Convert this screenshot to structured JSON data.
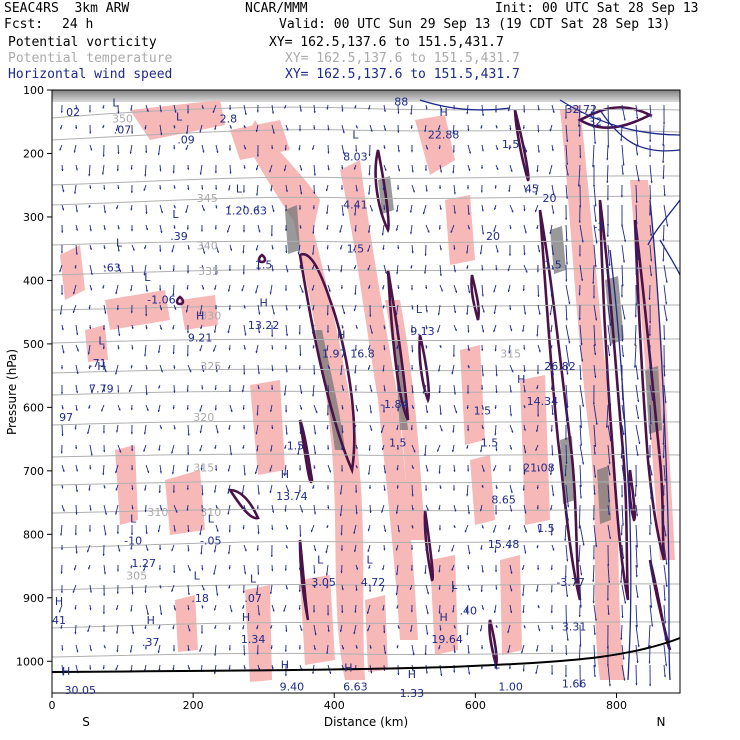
{
  "header": {
    "model": "SEAC4RS  3km ARW",
    "org": "NCAR/MMM",
    "init": "Init: 00 UTC Sat 28 Sep 13",
    "fcst_label": "Fcst:",
    "fcst_value": "24 h",
    "valid": "Valid: 00 UTC Sun 29 Sep 13 (19 CDT Sat 28 Sep 13)",
    "fields": [
      {
        "name": "Potential vorticity",
        "xy": "XY= 162.5,137.6 to 151.5,431.7",
        "color": "#000000"
      },
      {
        "name": "Potential temperature",
        "xy": "XY= 162.5,137.6 to 151.5,431.7",
        "color": "#aaaaaa"
      },
      {
        "name": "Horizontal wind speed",
        "xy": "XY= 162.5,137.6 to 151.5,431.7",
        "color": "#1e2a8a"
      }
    ]
  },
  "chart_data": {
    "type": "cross-section",
    "xlabel": "Distance (km)",
    "ylabel": "Pressure (hPa)",
    "xlim": [
      0,
      890
    ],
    "ylim": [
      1050,
      100
    ],
    "x_ticks": [
      0,
      200,
      400,
      600,
      800
    ],
    "y_ticks": [
      100,
      200,
      300,
      400,
      500,
      600,
      700,
      800,
      900,
      1000
    ],
    "end_labels": {
      "left": "S",
      "right": "N"
    },
    "colors": {
      "pv_shade": "#f7b8b8",
      "pv_contour": "#4a1248",
      "theta": "#aaaaaa",
      "wind": "#1e2a8a",
      "terrain": "#000000"
    },
    "theta_labels": [
      {
        "x": 100,
        "p": 145,
        "text": "350"
      },
      {
        "x": 220,
        "p": 270,
        "text": "345"
      },
      {
        "x": 220,
        "p": 345,
        "text": "340"
      },
      {
        "x": 222,
        "p": 385,
        "text": "335"
      },
      {
        "x": 225,
        "p": 455,
        "text": "330"
      },
      {
        "x": 225,
        "p": 535,
        "text": "325"
      },
      {
        "x": 215,
        "p": 615,
        "text": "320"
      },
      {
        "x": 215,
        "p": 695,
        "text": "315"
      },
      {
        "x": 150,
        "p": 765,
        "text": "310"
      },
      {
        "x": 225,
        "p": 765,
        "text": "310"
      },
      {
        "x": 120,
        "p": 865,
        "text": "305"
      },
      {
        "x": 650,
        "p": 515,
        "text": "315"
      }
    ],
    "annotations": [
      {
        "x": 30,
        "p": 135,
        "text": "02"
      },
      {
        "x": 90,
        "p": 120,
        "text": "L"
      },
      {
        "x": 100,
        "p": 162,
        "text": ".07"
      },
      {
        "x": 180,
        "p": 142,
        "text": "L"
      },
      {
        "x": 190,
        "p": 178,
        "text": ".09"
      },
      {
        "x": 250,
        "p": 145,
        "text": "2.8"
      },
      {
        "x": 265,
        "p": 255,
        "text": "L"
      },
      {
        "x": 275,
        "p": 290,
        "text": "1.20.63"
      },
      {
        "x": 175,
        "p": 295,
        "text": "L"
      },
      {
        "x": 180,
        "p": 330,
        "text": ".39"
      },
      {
        "x": 95,
        "p": 340,
        "text": "L"
      },
      {
        "x": 85,
        "p": 380,
        "text": ".63"
      },
      {
        "x": 135,
        "p": 395,
        "text": "L"
      },
      {
        "x": 155,
        "p": 430,
        "text": "-1.06"
      },
      {
        "x": 300,
        "p": 375,
        "text": "1.5"
      },
      {
        "x": 300,
        "p": 435,
        "text": "H"
      },
      {
        "x": 300,
        "p": 470,
        "text": "13.22"
      },
      {
        "x": 210,
        "p": 455,
        "text": "H"
      },
      {
        "x": 210,
        "p": 490,
        "text": "9.21"
      },
      {
        "x": 70,
        "p": 495,
        "text": "L"
      },
      {
        "x": 65,
        "p": 530,
        "text": ".71"
      },
      {
        "x": 70,
        "p": 535,
        "text": "H"
      },
      {
        "x": 70,
        "p": 570,
        "text": "7.79"
      },
      {
        "x": 20,
        "p": 615,
        "text": "97"
      },
      {
        "x": 430,
        "p": 170,
        "text": "L"
      },
      {
        "x": 430,
        "p": 205,
        "text": "8.03"
      },
      {
        "x": 430,
        "p": 280,
        "text": "4.41"
      },
      {
        "x": 430,
        "p": 350,
        "text": "1.5"
      },
      {
        "x": 410,
        "p": 485,
        "text": "H"
      },
      {
        "x": 400,
        "p": 515,
        "text": "1.97"
      },
      {
        "x": 440,
        "p": 515,
        "text": "16.8"
      },
      {
        "x": 520,
        "p": 445,
        "text": "L"
      },
      {
        "x": 525,
        "p": 480,
        "text": "9.13"
      },
      {
        "x": 485,
        "p": 595,
        "text": "-1.84"
      },
      {
        "x": 490,
        "p": 655,
        "text": "1.5"
      },
      {
        "x": 345,
        "p": 660,
        "text": "1.5"
      },
      {
        "x": 330,
        "p": 705,
        "text": "H"
      },
      {
        "x": 340,
        "p": 740,
        "text": "13.74"
      },
      {
        "x": 495,
        "p": 118,
        "text": "88"
      },
      {
        "x": 555,
        "p": 135,
        "text": "H"
      },
      {
        "x": 555,
        "p": 170,
        "text": "22.88"
      },
      {
        "x": 650,
        "p": 185,
        "text": "1.5"
      },
      {
        "x": 680,
        "p": 255,
        "text": "45"
      },
      {
        "x": 710,
        "p": 375,
        "text": "1.5"
      },
      {
        "x": 750,
        "p": 130,
        "text": "32.72"
      },
      {
        "x": 770,
        "p": 150,
        "text": "32"
      },
      {
        "x": 775,
        "p": 315,
        "text": "-3"
      },
      {
        "x": 705,
        "p": 270,
        "text": "20"
      },
      {
        "x": 625,
        "p": 330,
        "text": "20"
      },
      {
        "x": 665,
        "p": 555,
        "text": "H"
      },
      {
        "x": 695,
        "p": 590,
        "text": "14.34"
      },
      {
        "x": 610,
        "p": 605,
        "text": "1.5"
      },
      {
        "x": 720,
        "p": 535,
        "text": "26.82"
      },
      {
        "x": 620,
        "p": 655,
        "text": "1.5"
      },
      {
        "x": 690,
        "p": 695,
        "text": "21.08"
      },
      {
        "x": 640,
        "p": 745,
        "text": "8.65"
      },
      {
        "x": 640,
        "p": 815,
        "text": "15.48"
      },
      {
        "x": 700,
        "p": 790,
        "text": "1.5"
      },
      {
        "x": 735,
        "p": 875,
        "text": "-3.77"
      },
      {
        "x": 740,
        "p": 945,
        "text": "3.31"
      },
      {
        "x": 115,
        "p": 775,
        "text": "L"
      },
      {
        "x": 115,
        "p": 810,
        "text": "-10"
      },
      {
        "x": 130,
        "p": 845,
        "text": "1.27"
      },
      {
        "x": 225,
        "p": 775,
        "text": "L"
      },
      {
        "x": 225,
        "p": 810,
        "text": "-.05"
      },
      {
        "x": 205,
        "p": 865,
        "text": "L"
      },
      {
        "x": 210,
        "p": 900,
        "text": ".18"
      },
      {
        "x": 285,
        "p": 870,
        "text": "L"
      },
      {
        "x": 285,
        "p": 900,
        "text": ".07"
      },
      {
        "x": 380,
        "p": 840,
        "text": "L"
      },
      {
        "x": 385,
        "p": 875,
        "text": "3.05"
      },
      {
        "x": 450,
        "p": 840,
        "text": "L"
      },
      {
        "x": 455,
        "p": 875,
        "text": "4.72"
      },
      {
        "x": 570,
        "p": 880,
        "text": "L"
      },
      {
        "x": 590,
        "p": 920,
        "text": ".40"
      },
      {
        "x": 10,
        "p": 905,
        "text": "H"
      },
      {
        "x": 10,
        "p": 935,
        "text": "41"
      },
      {
        "x": 140,
        "p": 935,
        "text": "H"
      },
      {
        "x": 140,
        "p": 970,
        "text": ".37"
      },
      {
        "x": 275,
        "p": 930,
        "text": "H"
      },
      {
        "x": 285,
        "p": 965,
        "text": "1.34"
      },
      {
        "x": 555,
        "p": 930,
        "text": "H"
      },
      {
        "x": 560,
        "p": 965,
        "text": "19.64"
      },
      {
        "x": 20,
        "p": 1015,
        "text": "H"
      },
      {
        "x": 40,
        "p": 1045,
        "text": "30.05"
      },
      {
        "x": 330,
        "p": 1005,
        "text": "H"
      },
      {
        "x": 340,
        "p": 1040,
        "text": "9.40"
      },
      {
        "x": 420,
        "p": 1010,
        "text": "H"
      },
      {
        "x": 430,
        "p": 1040,
        "text": "6.63"
      },
      {
        "x": 510,
        "p": 1020,
        "text": "H"
      },
      {
        "x": 510,
        "p": 1050,
        "text": "1.33"
      },
      {
        "x": 630,
        "p": 1005,
        "text": "L"
      },
      {
        "x": 650,
        "p": 1040,
        "text": "1.00"
      },
      {
        "x": 740,
        "p": 1035,
        "text": "1.66"
      }
    ]
  }
}
